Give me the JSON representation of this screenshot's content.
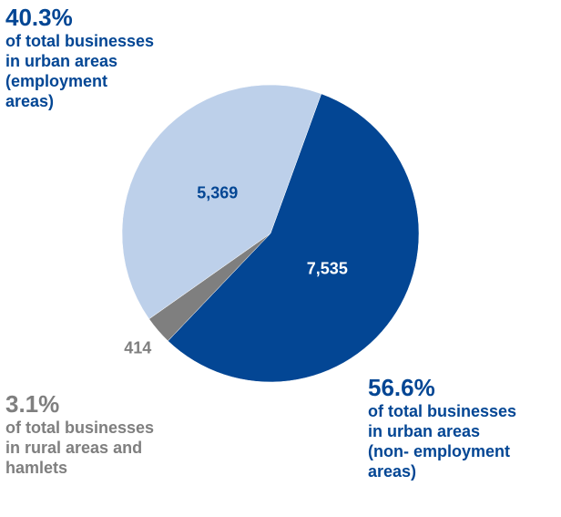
{
  "chart_data": {
    "type": "pie",
    "slices": [
      {
        "label": "of total businesses in urban areas (non- employment areas)",
        "value": 7535,
        "percent": "56.6%",
        "value_label": "7,535",
        "color": "#034694"
      },
      {
        "label": "of total businesses in rural areas and hamlets",
        "value": 414,
        "percent": "3.1%",
        "value_label": "414",
        "color": "#7f7f7f"
      },
      {
        "label": "of total businesses in urban areas (employment areas)",
        "value": 5369,
        "percent": "40.3%",
        "value_label": "5,369",
        "color": "#bdd0ea"
      }
    ],
    "start_angle_deg": 20,
    "direction": "clockwise",
    "label_colors": {
      "employment": "#034694",
      "rural": "#7f7f7f",
      "non_employment": "#034694",
      "inside_light": "#034694",
      "inside_dark": "#ffffff"
    }
  },
  "callouts": {
    "employment": {
      "percent": "40.3%",
      "description": "of total businesses\nin urban areas\n(employment\nareas)"
    },
    "rural": {
      "percent": "3.1%",
      "description": "of total businesses\nin rural areas and\nhamlets"
    },
    "non_employment": {
      "percent": "56.6%",
      "description": "of total businesses\nin urban areas\n(non- employment\nareas)"
    }
  }
}
